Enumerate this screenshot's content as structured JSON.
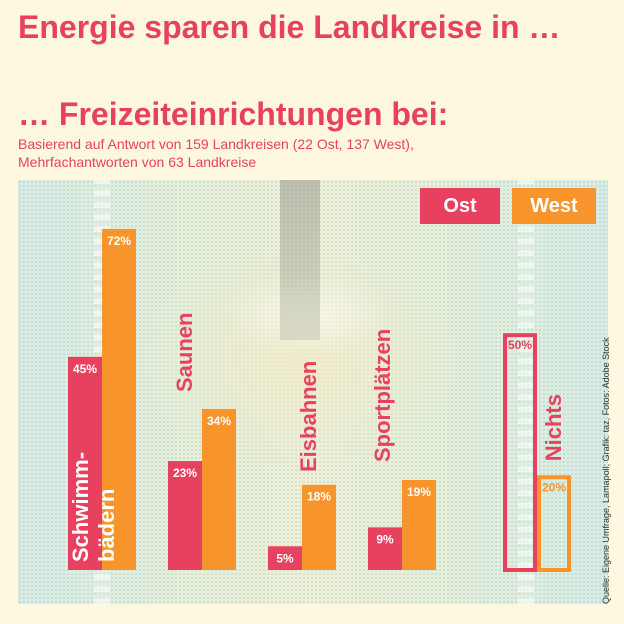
{
  "header": {
    "title": "Energie sparen die Landkreise in …",
    "subtitle": "… Freizeiteinrichtungen bei:",
    "description": [
      "Basierend auf Antwort von 159 Landkreisen (22 Ost, 137 West),",
      "Mehrfachantworten von 63 Landkreise"
    ]
  },
  "source": "Quelle: Eigene Umfrage, Lamapoll; Grafik: taz, Fotos: Adobe Stock",
  "colors": {
    "ost": "#e8415f",
    "west": "#f7952c",
    "background": "#fdf8df"
  },
  "chart_data": {
    "type": "bar",
    "title": "… Freizeiteinrichtungen bei:",
    "categories": [
      "Schwimm-bädern",
      "Saunen",
      "Eisbahnen",
      "Sportplätzen",
      "Nichts"
    ],
    "category_label_lines": {
      "Schwimm-bädern": [
        "Schwimm-",
        "bädern"
      ]
    },
    "series": [
      {
        "name": "Ost",
        "values": [
          45,
          23,
          5,
          9,
          50
        ],
        "labels": [
          "45%",
          "23%",
          "5%",
          "9%",
          "50%"
        ]
      },
      {
        "name": "West",
        "values": [
          72,
          34,
          18,
          19,
          20
        ],
        "labels": [
          "72%",
          "34%",
          "18%",
          "19%",
          "20%"
        ]
      }
    ],
    "outlined_category": "Nichts",
    "unit": "%",
    "ylim": [
      0,
      80
    ],
    "legend_position": "top-right",
    "grid": false
  }
}
